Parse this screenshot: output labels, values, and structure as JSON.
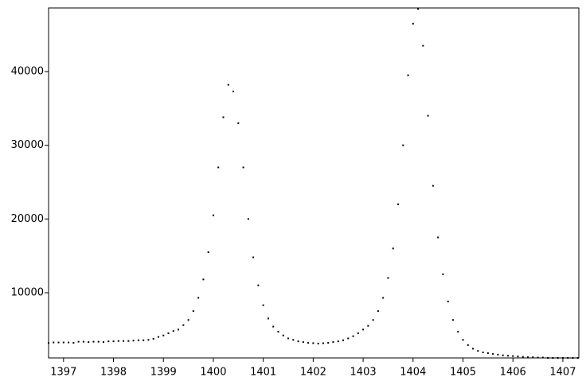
{
  "chart_data": {
    "type": "scatter",
    "color": "#000000",
    "x": [
      1396.7,
      1396.8,
      1396.9,
      1397,
      1397.1,
      1397.2,
      1397.3,
      1397.4,
      1397.5,
      1397.6,
      1397.7,
      1397.8,
      1397.9,
      1398,
      1398.1,
      1398.2,
      1398.3,
      1398.4,
      1398.5,
      1398.6,
      1398.7,
      1398.8,
      1398.9,
      1399,
      1399.1,
      1399.2,
      1399.3,
      1399.4,
      1399.5,
      1399.6,
      1399.7,
      1399.8,
      1399.9,
      1400,
      1400.1,
      1400.2,
      1400.3,
      1400.4,
      1400.5,
      1400.6,
      1400.7,
      1400.8,
      1400.9,
      1401,
      1401.1,
      1401.2,
      1401.3,
      1401.4,
      1401.5,
      1401.6,
      1401.7,
      1401.8,
      1401.9,
      1402,
      1402.1,
      1402.2,
      1402.3,
      1402.4,
      1402.5,
      1402.6,
      1402.7,
      1402.8,
      1402.9,
      1403,
      1403.1,
      1403.2,
      1403.3,
      1403.4,
      1403.5,
      1403.6,
      1403.7,
      1403.8,
      1403.9,
      1404,
      1404.1,
      1404.2,
      1404.3,
      1404.4,
      1404.5,
      1404.6,
      1404.7,
      1404.8,
      1404.9,
      1405,
      1405.1,
      1405.2,
      1405.3,
      1405.4,
      1405.5,
      1405.6,
      1405.7,
      1405.8,
      1405.9,
      1406,
      1406.1,
      1406.2,
      1406.3,
      1406.4,
      1406.5,
      1406.6,
      1406.7,
      1406.8,
      1406.9,
      1407,
      1407.1,
      1407.2,
      1407.3
    ],
    "values": [
      3200,
      3250,
      3250,
      3250,
      3250,
      3200,
      3350,
      3350,
      3300,
      3350,
      3350,
      3300,
      3400,
      3400,
      3450,
      3450,
      3450,
      3500,
      3550,
      3550,
      3600,
      3750,
      4000,
      4200,
      4500,
      4800,
      5000,
      5600,
      6300,
      7500,
      9300,
      11800,
      15500,
      20500,
      27000,
      33800,
      38200,
      37300,
      33000,
      27000,
      20000,
      14800,
      11000,
      8300,
      6500,
      5400,
      4700,
      4200,
      3800,
      3600,
      3400,
      3300,
      3200,
      3150,
      3100,
      3150,
      3200,
      3300,
      3400,
      3550,
      3800,
      4100,
      4500,
      5000,
      5500,
      6300,
      7500,
      9300,
      12000,
      16000,
      22000,
      30000,
      39500,
      46500,
      48500,
      43500,
      34000,
      24500,
      17500,
      12500,
      8800,
      6300,
      4700,
      3600,
      2900,
      2400,
      2100,
      1900,
      1800,
      1700,
      1600,
      1500,
      1450,
      1400,
      1350,
      1300,
      1250,
      1250,
      1200,
      1200,
      1150,
      1150,
      1150,
      1150,
      1150,
      1150,
      1150
    ],
    "xlim": [
      1396.7,
      1407.32
    ],
    "xticks": [
      1397,
      1398,
      1399,
      1400,
      1401,
      1402,
      1403,
      1404,
      1405,
      1406,
      1407
    ],
    "ylim": [
      1150,
      48630
    ],
    "yticks": [
      10000,
      20000,
      30000,
      40000
    ]
  }
}
